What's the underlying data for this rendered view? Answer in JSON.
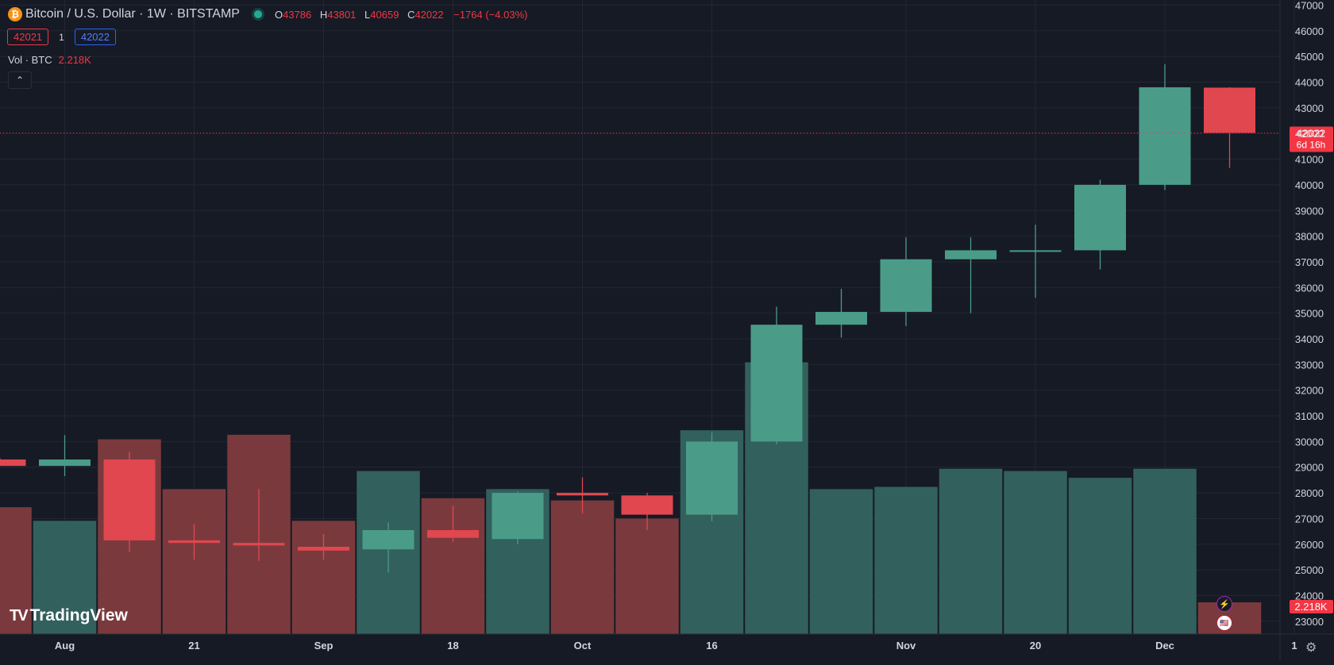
{
  "header": {
    "symbol": "Bitcoin / U.S. Dollar · 1W · BITSTAMP",
    "coin_glyph": "₿",
    "ohlc": {
      "o_label": "O",
      "o": "43786",
      "h_label": "H",
      "h": "43801",
      "l_label": "L",
      "l": "40659",
      "c_label": "C",
      "c": "42022",
      "change": "−1764 (−4.03%)"
    },
    "sell_price": "42021",
    "quantity": "1",
    "buy_price": "42022",
    "volume_label": "Vol · BTC",
    "volume_value": "2.218K",
    "collapse_glyph": "⌃"
  },
  "logo": {
    "mark": "TV",
    "text": "TradingView"
  },
  "icons": {
    "bolt": "⚡",
    "flag": "🇺🇸",
    "gear": "⚙"
  },
  "colors": {
    "background": "#161a25",
    "up": "#22ab94",
    "down": "#f23645",
    "grid": "#232733",
    "axis_text": "#d1d4dc"
  },
  "chart_data": {
    "type": "candlestick",
    "timeframe": "1W",
    "ylim": [
      22500,
      47200
    ],
    "y_ticks": [
      23000,
      24000,
      25000,
      26000,
      27000,
      28000,
      29000,
      30000,
      31000,
      32000,
      33000,
      34000,
      35000,
      36000,
      37000,
      38000,
      39000,
      40000,
      41000,
      42000,
      43000,
      44000,
      45000,
      46000,
      47000
    ],
    "x_tick_labels": [
      {
        "label": "Aug",
        "index": 1
      },
      {
        "label": "21",
        "index": 3
      },
      {
        "label": "Sep",
        "index": 5
      },
      {
        "label": "18",
        "index": 7
      },
      {
        "label": "Oct",
        "index": 9
      },
      {
        "label": "16",
        "index": 11
      },
      {
        "label": "Nov",
        "index": 14
      },
      {
        "label": "20",
        "index": 16
      },
      {
        "label": "Dec",
        "index": 18
      },
      {
        "label": "1",
        "index": 20
      }
    ],
    "candles": [
      {
        "o": 29300,
        "h": 29350,
        "l": 29050,
        "c": 29050
      },
      {
        "o": 29050,
        "h": 30250,
        "l": 28650,
        "c": 29300
      },
      {
        "o": 29300,
        "h": 29600,
        "l": 25700,
        "c": 26150
      },
      {
        "o": 26150,
        "h": 26800,
        "l": 25400,
        "c": 26050
      },
      {
        "o": 26050,
        "h": 28150,
        "l": 25350,
        "c": 25950
      },
      {
        "o": 25900,
        "h": 26400,
        "l": 25400,
        "c": 25750
      },
      {
        "o": 25800,
        "h": 26850,
        "l": 24900,
        "c": 26550
      },
      {
        "o": 26550,
        "h": 27500,
        "l": 26100,
        "c": 26250
      },
      {
        "o": 26200,
        "h": 28050,
        "l": 26000,
        "c": 28000
      },
      {
        "o": 28000,
        "h": 28600,
        "l": 27200,
        "c": 27900
      },
      {
        "o": 27900,
        "h": 28000,
        "l": 26550,
        "c": 27150
      },
      {
        "o": 27150,
        "h": 30350,
        "l": 26900,
        "c": 30000
      },
      {
        "o": 30000,
        "h": 35250,
        "l": 29900,
        "c": 34550
      },
      {
        "o": 34550,
        "h": 35950,
        "l": 34050,
        "c": 35050
      },
      {
        "o": 35050,
        "h": 37950,
        "l": 34500,
        "c": 37100
      },
      {
        "o": 37100,
        "h": 37950,
        "l": 35000,
        "c": 37450
      },
      {
        "o": 37400,
        "h": 38450,
        "l": 35600,
        "c": 37450
      },
      {
        "o": 37450,
        "h": 40200,
        "l": 36700,
        "c": 40000
      },
      {
        "o": 40000,
        "h": 44700,
        "l": 39800,
        "c": 43800
      },
      {
        "o": 43786,
        "h": 43801,
        "l": 40659,
        "c": 42022
      }
    ],
    "volume_bars": [
      {
        "value": 2.8,
        "dir": "down"
      },
      {
        "value": 2.5,
        "dir": "up"
      },
      {
        "value": 4.3,
        "dir": "down"
      },
      {
        "value": 3.2,
        "dir": "down"
      },
      {
        "value": 4.4,
        "dir": "down"
      },
      {
        "value": 2.5,
        "dir": "down"
      },
      {
        "value": 3.6,
        "dir": "up"
      },
      {
        "value": 3.0,
        "dir": "down"
      },
      {
        "value": 3.2,
        "dir": "up"
      },
      {
        "value": 2.95,
        "dir": "down"
      },
      {
        "value": 2.55,
        "dir": "down"
      },
      {
        "value": 4.5,
        "dir": "up"
      },
      {
        "value": 6.0,
        "dir": "up"
      },
      {
        "value": 3.2,
        "dir": "up"
      },
      {
        "value": 3.25,
        "dir": "up"
      },
      {
        "value": 3.65,
        "dir": "up"
      },
      {
        "value": 3.6,
        "dir": "up"
      },
      {
        "value": 3.45,
        "dir": "up"
      },
      {
        "value": 3.65,
        "dir": "up"
      },
      {
        "value": 0.7,
        "dir": "down"
      }
    ],
    "volume_max": 14,
    "last_price_label": "42022",
    "countdown": "6d 16h",
    "last_volume_label": "2.218K"
  }
}
